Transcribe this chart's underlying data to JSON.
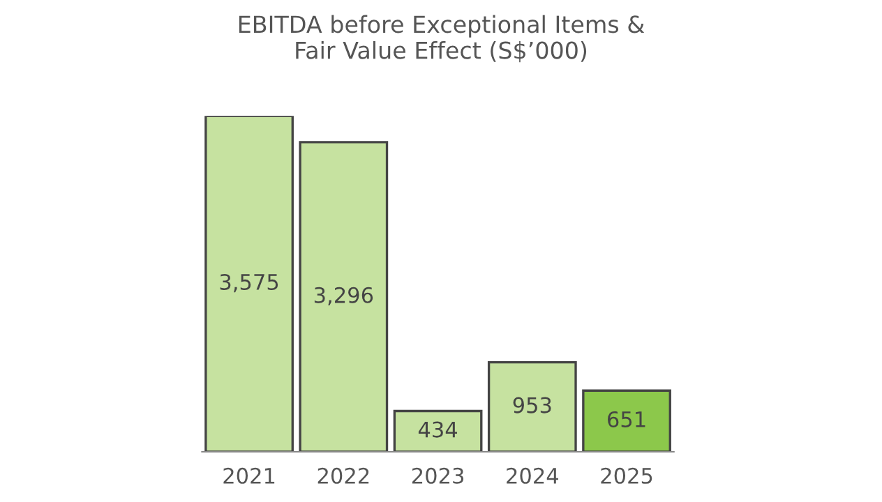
{
  "chart_data": {
    "type": "bar",
    "title": "EBITDA before Exceptional Items &\nFair Value Effect (S$’000)",
    "categories": [
      "2021",
      "2022",
      "2023",
      "2024",
      "2025"
    ],
    "values": [
      3575,
      3296,
      434,
      953,
      651
    ],
    "colors": [
      "#c6e2a0",
      "#c6e2a0",
      "#c6e2a0",
      "#c6e2a0",
      "#8cc84b"
    ],
    "value_labels": [
      "3,575",
      "3,296",
      "434",
      "953",
      "651"
    ],
    "grid": false,
    "legend": false
  }
}
